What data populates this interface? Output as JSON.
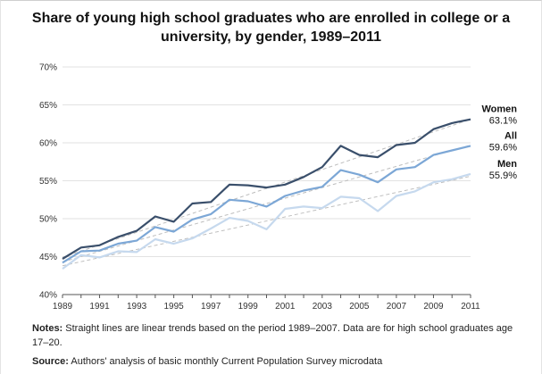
{
  "chart_data": {
    "type": "line",
    "title": "Share of young high school graduates who are enrolled in college or a university, by gender, 1989–2011",
    "xlabel": "",
    "ylabel": "",
    "x": [
      1989,
      1990,
      1991,
      1992,
      1993,
      1994,
      1995,
      1996,
      1997,
      1998,
      1999,
      2000,
      2001,
      2002,
      2003,
      2004,
      2005,
      2006,
      2007,
      2008,
      2009,
      2010,
      2011
    ],
    "x_ticks": [
      "1989",
      "1991",
      "1993",
      "1995",
      "1997",
      "1999",
      "2001",
      "2003",
      "2005",
      "2007",
      "2009",
      "2011"
    ],
    "y_ticks": [
      "40%",
      "45%",
      "50%",
      "55%",
      "60%",
      "65%",
      "70%"
    ],
    "ylim": [
      40,
      70
    ],
    "grid": "horizontal",
    "series": [
      {
        "name": "Women",
        "label_value": "63.1%",
        "color": "#3a4f6b",
        "values": [
          44.7,
          46.2,
          46.5,
          47.6,
          48.4,
          50.3,
          49.6,
          52.0,
          52.2,
          54.5,
          54.4,
          54.1,
          54.5,
          55.5,
          56.8,
          59.6,
          58.4,
          58.1,
          59.7,
          60.0,
          61.8,
          62.6,
          63.1
        ],
        "trend": [
          44.9,
          63.1
        ]
      },
      {
        "name": "All",
        "label_value": "59.6%",
        "color": "#7ca7d6",
        "values": [
          44.2,
          45.7,
          45.8,
          46.7,
          47.1,
          48.9,
          48.3,
          49.9,
          50.6,
          52.5,
          52.3,
          51.6,
          53.0,
          53.7,
          54.2,
          56.4,
          55.8,
          54.8,
          56.5,
          56.8,
          58.4,
          59.0,
          59.6
        ],
        "trend": [
          44.3,
          59.7
        ]
      },
      {
        "name": "Men",
        "label_value": "55.9%",
        "color": "#c6d9ee",
        "values": [
          43.4,
          45.2,
          44.9,
          45.7,
          45.6,
          47.3,
          46.7,
          47.4,
          48.7,
          50.1,
          49.7,
          48.6,
          51.3,
          51.6,
          51.4,
          52.9,
          52.7,
          51.0,
          53.0,
          53.6,
          54.8,
          55.2,
          55.9
        ],
        "trend": [
          43.8,
          55.6
        ]
      }
    ],
    "trend_color": "#bdbdbd"
  },
  "notes": {
    "label": "Notes:",
    "text": " Straight lines are linear trends based on the period 1989–2007. Data are for high school graduates age 17–20."
  },
  "source": {
    "label": "Source:",
    "text": " Authors' analysis of basic monthly Current Population Survey microdata"
  }
}
